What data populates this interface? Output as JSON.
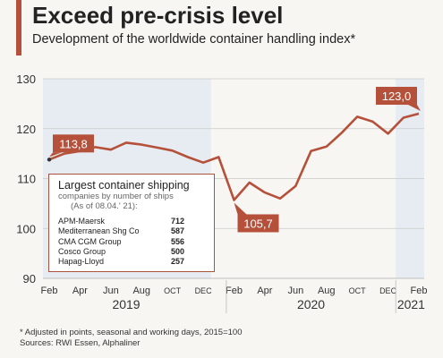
{
  "header": {
    "title": "Exceed pre-crisis level",
    "subtitle": "Development of the worldwide container handling index*"
  },
  "colors": {
    "line": "#b5513a",
    "accent": "#b5513a",
    "shade": "#e6ecf1",
    "grid": "#c9c9c9"
  },
  "chart_data": {
    "type": "line",
    "title": "Exceed pre-crisis level",
    "subtitle": "Development of the worldwide container handling index*",
    "ylim": [
      90,
      130
    ],
    "yticks": [
      90,
      100,
      110,
      120,
      130
    ],
    "grid": true,
    "x": [
      "2019-02",
      "2019-03",
      "2019-04",
      "2019-05",
      "2019-06",
      "2019-07",
      "2019-08",
      "2019-09",
      "2019-10",
      "2019-11",
      "2019-12",
      "2020-01",
      "2020-02",
      "2020-03",
      "2020-04",
      "2020-05",
      "2020-06",
      "2020-07",
      "2020-08",
      "2020-09",
      "2020-10",
      "2020-11",
      "2020-12",
      "2021-01",
      "2021-02"
    ],
    "series": [
      {
        "values": [
          113.8,
          115.0,
          115.5,
          116.3,
          115.8,
          117.2,
          116.8,
          116.2,
          115.6,
          114.3,
          113.2,
          114.3,
          105.7,
          109.2,
          107.2,
          106.0,
          108.5,
          115.5,
          116.4,
          119.2,
          122.4,
          121.4,
          119.0,
          122.2,
          123.0
        ]
      }
    ],
    "x_tick_labels": [
      "Feb",
      "Apr",
      "Jun",
      "Aug",
      "OCT",
      "DEC",
      "Feb",
      "Apr",
      "Jun",
      "Aug",
      "OCT",
      "DEC",
      "Feb"
    ],
    "year_labels": [
      "2019",
      "2020",
      "2021"
    ],
    "shaded_periods": [
      [
        "2019-02",
        "2019-12"
      ],
      [
        "2021-01",
        "2021-02"
      ]
    ],
    "callouts": [
      {
        "label": "113,8",
        "x": "2019-02",
        "y": 113.8
      },
      {
        "label": "105,7",
        "x": "2020-02",
        "y": 105.7
      },
      {
        "label": "123,0",
        "x": "2021-02",
        "y": 123.0
      }
    ]
  },
  "legend_box": {
    "title": "Largest container shipping",
    "subtitle": "companies by number of ships",
    "subtitle2": "(As of 08.04.' 21):",
    "rows": [
      {
        "company": "APM-Maersk",
        "ships": "712"
      },
      {
        "company": "Mediterranean Shg Co",
        "ships": "587"
      },
      {
        "company": "CMA CGM Group",
        "ships": "556"
      },
      {
        "company": "Cosco Group",
        "ships": "500"
      },
      {
        "company": "Hapag-Lloyd",
        "ships": "257"
      }
    ]
  },
  "footnote": {
    "note": "* Adjusted in points, seasonal and working days, 2015=100",
    "sources": "Sources: RWI Essen, Alphaliner"
  }
}
